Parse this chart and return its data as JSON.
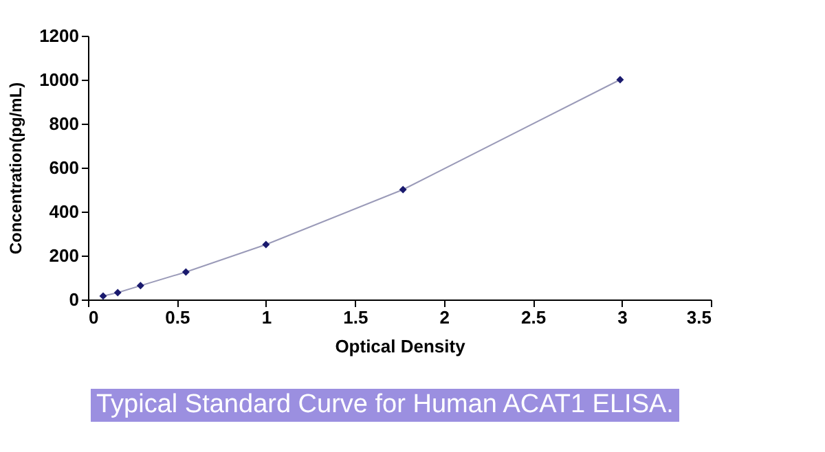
{
  "chart_data": {
    "type": "scatter",
    "title": "Typical Standard Curve for Human ACAT1 ELISA.",
    "xlabel": "Optical Density",
    "ylabel": "Concentration(pg/mL)",
    "xlim": [
      0,
      3.5
    ],
    "xticks": [
      0,
      0.5,
      1,
      1.5,
      2,
      2.5,
      3,
      3.5
    ],
    "ylim": [
      0,
      1200
    ],
    "yticks": [
      0,
      200,
      400,
      600,
      800,
      1000,
      1200
    ],
    "grid": false,
    "series": [
      {
        "type": "line",
        "color": "#9a9ab8",
        "marker": "none",
        "x": [
          0.085,
          0.167,
          0.295,
          0.55,
          1,
          1.77,
          2.99
        ],
        "values": [
          16,
          31,
          63,
          125,
          250,
          500,
          1000
        ]
      },
      {
        "color": "#1a1a6e",
        "marker": "diamond",
        "x": [
          0.085,
          0.167,
          0.295,
          0.55,
          1,
          1.77,
          2.99
        ],
        "values": [
          16,
          31,
          63,
          125,
          250,
          500,
          1000
        ]
      }
    ]
  }
}
